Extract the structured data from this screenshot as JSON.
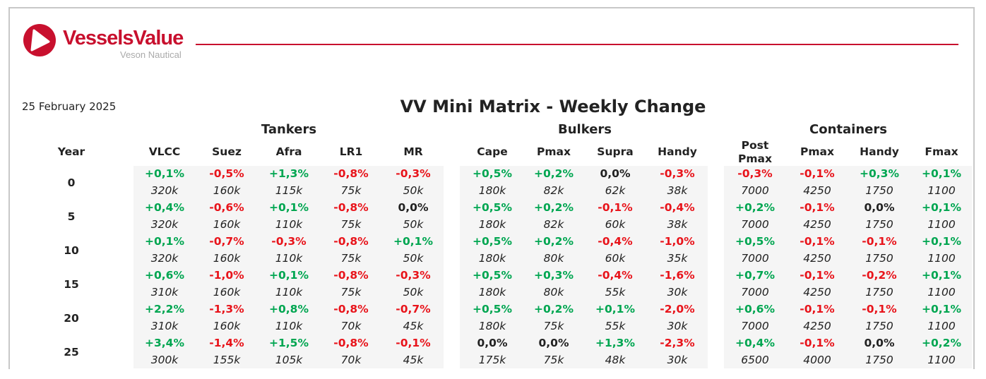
{
  "logo": {
    "name": "VesselsValue",
    "sub": "Veson Nautical"
  },
  "date": "25 February 2025",
  "title": "VV Mini Matrix - Weekly Change",
  "year_label": "Year",
  "years": [
    "0",
    "5",
    "10",
    "15",
    "20",
    "25"
  ],
  "colors": {
    "positive": "#00a651",
    "negative": "#e8141b",
    "neutral": "#222222",
    "brand": "#c8102e"
  },
  "groups": [
    {
      "name": "Tankers",
      "columns": [
        {
          "label": "VLCC",
          "pct": [
            "+0,1%",
            "+0,4%",
            "+0,1%",
            "+0,6%",
            "+2,2%",
            "+3,4%"
          ],
          "val": [
            "320k",
            "320k",
            "320k",
            "310k",
            "310k",
            "300k"
          ]
        },
        {
          "label": "Suez",
          "pct": [
            "-0,5%",
            "-0,6%",
            "-0,7%",
            "-1,0%",
            "-1,3%",
            "-1,4%"
          ],
          "val": [
            "160k",
            "160k",
            "160k",
            "160k",
            "160k",
            "155k"
          ]
        },
        {
          "label": "Afra",
          "pct": [
            "+1,3%",
            "+0,1%",
            "-0,3%",
            "+0,1%",
            "+0,8%",
            "+1,5%"
          ],
          "val": [
            "115k",
            "110k",
            "110k",
            "110k",
            "110k",
            "105k"
          ]
        },
        {
          "label": "LR1",
          "pct": [
            "-0,8%",
            "-0,8%",
            "-0,8%",
            "-0,8%",
            "-0,8%",
            "-0,8%"
          ],
          "val": [
            "75k",
            "75k",
            "75k",
            "75k",
            "70k",
            "70k"
          ]
        },
        {
          "label": "MR",
          "pct": [
            "-0,3%",
            "0,0%",
            "+0,1%",
            "-0,3%",
            "-0,7%",
            "-0,1%"
          ],
          "val": [
            "50k",
            "50k",
            "50k",
            "50k",
            "45k",
            "45k"
          ]
        }
      ]
    },
    {
      "name": "Bulkers",
      "columns": [
        {
          "label": "Cape",
          "pct": [
            "+0,5%",
            "+0,5%",
            "+0,5%",
            "+0,5%",
            "+0,5%",
            "0,0%"
          ],
          "val": [
            "180k",
            "180k",
            "180k",
            "180k",
            "180k",
            "175k"
          ]
        },
        {
          "label": "Pmax",
          "pct": [
            "+0,2%",
            "+0,2%",
            "+0,2%",
            "+0,3%",
            "+0,2%",
            "0,0%"
          ],
          "val": [
            "82k",
            "82k",
            "80k",
            "80k",
            "75k",
            "75k"
          ]
        },
        {
          "label": "Supra",
          "pct": [
            "0,0%",
            "-0,1%",
            "-0,4%",
            "-0,4%",
            "+0,1%",
            "+1,3%"
          ],
          "val": [
            "62k",
            "60k",
            "60k",
            "55k",
            "55k",
            "48k"
          ]
        },
        {
          "label": "Handy",
          "pct": [
            "-0,3%",
            "-0,4%",
            "-1,0%",
            "-1,6%",
            "-2,0%",
            "-2,3%"
          ],
          "val": [
            "38k",
            "38k",
            "35k",
            "30k",
            "30k",
            "30k"
          ]
        }
      ]
    },
    {
      "name": "Containers",
      "columns": [
        {
          "label": "Post Pmax",
          "pct": [
            "-0,3%",
            "+0,2%",
            "+0,5%",
            "+0,7%",
            "+0,6%",
            "+0,4%"
          ],
          "val": [
            "7000",
            "7000",
            "7000",
            "7000",
            "7000",
            "6500"
          ]
        },
        {
          "label": "Pmax",
          "pct": [
            "-0,1%",
            "-0,1%",
            "-0,1%",
            "-0,1%",
            "-0,1%",
            "-0,1%"
          ],
          "val": [
            "4250",
            "4250",
            "4250",
            "4250",
            "4250",
            "4000"
          ]
        },
        {
          "label": "Handy",
          "pct": [
            "+0,3%",
            "0,0%",
            "-0,1%",
            "-0,2%",
            "-0,1%",
            "0,0%"
          ],
          "val": [
            "1750",
            "1750",
            "1750",
            "1750",
            "1750",
            "1750"
          ]
        },
        {
          "label": "Fmax",
          "pct": [
            "+0,1%",
            "+0,1%",
            "+0,1%",
            "+0,1%",
            "+0,1%",
            "+0,2%"
          ],
          "val": [
            "1100",
            "1100",
            "1100",
            "1100",
            "1100",
            "1100"
          ]
        }
      ]
    }
  ]
}
